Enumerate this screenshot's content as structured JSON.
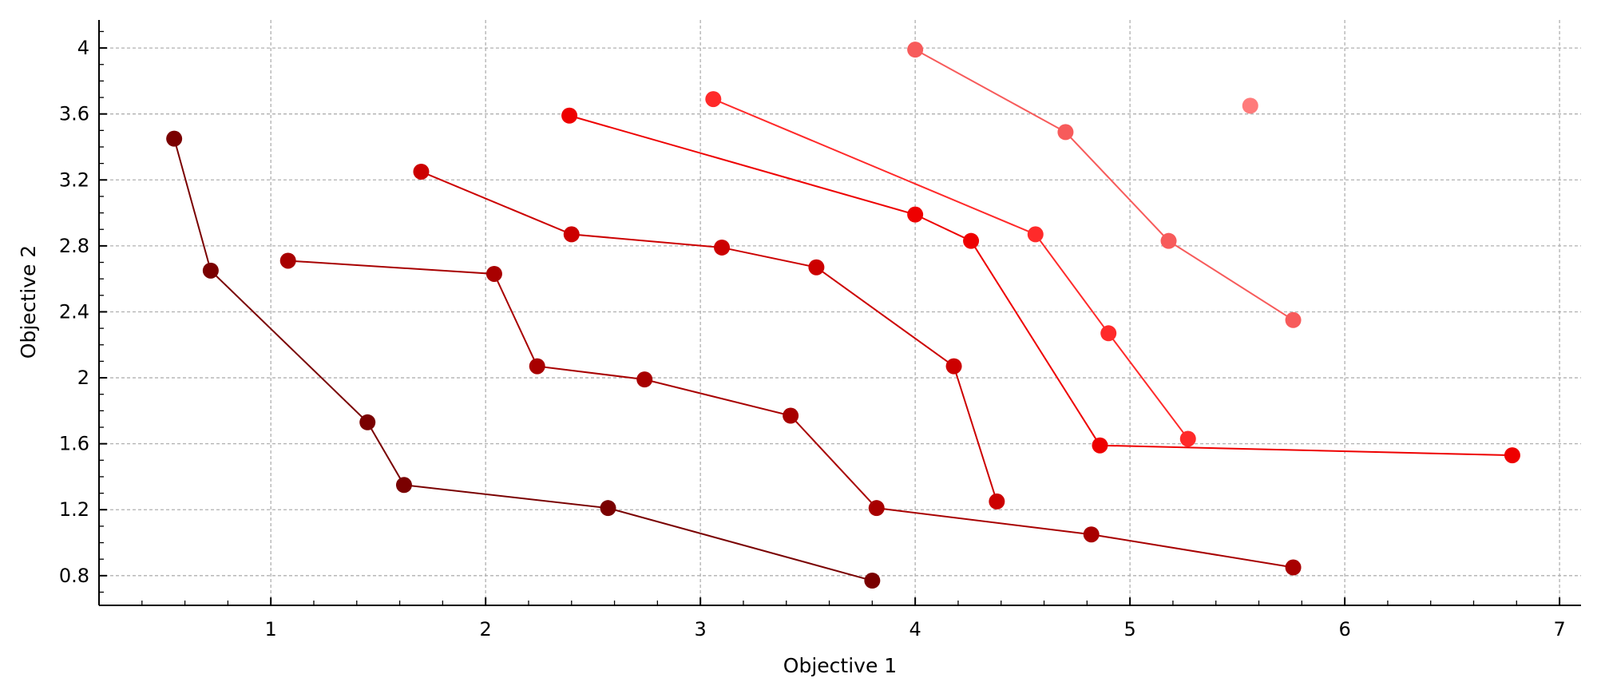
{
  "chart_data": {
    "type": "scatter",
    "xlabel": "Objective 1",
    "ylabel": "Objective 2",
    "xlim": [
      0.2,
      7.1
    ],
    "ylim": [
      0.62,
      4.17
    ],
    "xticks": [
      1,
      2,
      3,
      4,
      5,
      6,
      7
    ],
    "xtick_labels": [
      "1",
      "2",
      "3",
      "4",
      "5",
      "6",
      "7"
    ],
    "yticks": [
      0.8,
      1.2,
      1.6,
      2.0,
      2.4,
      2.8,
      3.2,
      3.6,
      4.0
    ],
    "ytick_labels": [
      "0.8",
      "1.2",
      "1.6",
      "2",
      "2.4",
      "2.8",
      "3.2",
      "3.6",
      "4"
    ],
    "grid": true,
    "series": [
      {
        "color": "#7a0000",
        "x": [
          0.55,
          0.72,
          1.45,
          1.62,
          2.57,
          3.8
        ],
        "y": [
          3.45,
          2.65,
          1.73,
          1.35,
          1.21,
          0.77
        ]
      },
      {
        "color": "#a80000",
        "x": [
          1.08,
          2.04,
          2.24,
          2.74,
          3.42,
          3.82,
          4.82,
          5.76
        ],
        "y": [
          2.71,
          2.63,
          2.07,
          1.99,
          1.77,
          1.21,
          1.05,
          0.85
        ]
      },
      {
        "color": "#cc0000",
        "x": [
          1.7,
          2.4,
          3.1,
          3.54,
          4.18,
          4.38
        ],
        "y": [
          3.25,
          2.87,
          2.79,
          2.67,
          2.07,
          1.25
        ]
      },
      {
        "color": "#ee0000",
        "x": [
          2.39,
          4.0,
          4.26,
          4.86,
          6.78
        ],
        "y": [
          3.59,
          2.99,
          2.83,
          1.59,
          1.53
        ]
      },
      {
        "color": "#ff2a2a",
        "x": [
          3.06,
          4.56,
          4.9,
          5.27
        ],
        "y": [
          3.69,
          2.87,
          2.27,
          1.63
        ]
      },
      {
        "color": "#f75b5b",
        "x": [
          4.0,
          4.7,
          5.18,
          5.76
        ],
        "y": [
          3.99,
          3.49,
          2.83,
          2.35
        ]
      },
      {
        "color": "#ff7b7b",
        "x": [
          5.56
        ],
        "y": [
          3.65
        ]
      }
    ]
  }
}
